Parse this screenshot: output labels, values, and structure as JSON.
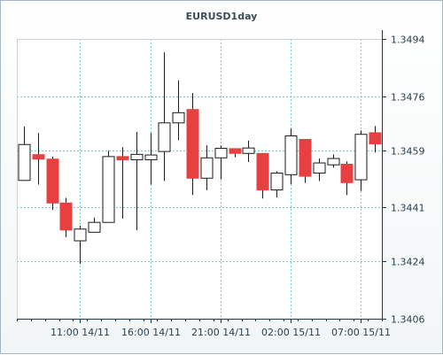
{
  "chart_data": {
    "type": "candlestick",
    "title": "EURUSD1day",
    "xlabel": "",
    "ylabel": "",
    "ylim": [
      1.3406,
      1.3494
    ],
    "y_ticks": [
      "1.3494",
      "1.3476",
      "1.3459",
      "1.3441",
      "1.3424",
      "1.3406"
    ],
    "x_ticks": [
      {
        "label": "11:00 14/11",
        "index": 4.5
      },
      {
        "label": "16:00 14/11",
        "index": 9.5
      },
      {
        "label": "21:00 14/11",
        "index": 14.5
      },
      {
        "label": "02:00 15/11",
        "index": 19.5
      },
      {
        "label": "07:00 15/11",
        "index": 24.5
      }
    ],
    "grid": true,
    "colors": {
      "bearish": "#e84040",
      "bullish": "#ffffff",
      "outline": "#1a1a1a",
      "grid": "#7ecbd3",
      "axis": "#1e3a4a"
    },
    "candles": [
      {
        "open": 1.34495,
        "high": 1.34665,
        "low": 1.34495,
        "close": 1.34608
      },
      {
        "open": 1.34576,
        "high": 1.34644,
        "low": 1.34482,
        "close": 1.34562
      },
      {
        "open": 1.34562,
        "high": 1.3457,
        "low": 1.34402,
        "close": 1.34424
      },
      {
        "open": 1.34424,
        "high": 1.3444,
        "low": 1.34317,
        "close": 1.34339
      },
      {
        "open": 1.34305,
        "high": 1.34352,
        "low": 1.34232,
        "close": 1.34342
      },
      {
        "open": 1.34332,
        "high": 1.34378,
        "low": 1.34332,
        "close": 1.34363
      },
      {
        "open": 1.34363,
        "high": 1.34588,
        "low": 1.34363,
        "close": 1.3457
      },
      {
        "open": 1.3457,
        "high": 1.346,
        "low": 1.34375,
        "close": 1.3456
      },
      {
        "open": 1.3456,
        "high": 1.34648,
        "low": 1.34339,
        "close": 1.34577
      },
      {
        "open": 1.3456,
        "high": 1.34644,
        "low": 1.34482,
        "close": 1.34575
      },
      {
        "open": 1.34586,
        "high": 1.34898,
        "low": 1.34493,
        "close": 1.34676
      },
      {
        "open": 1.34676,
        "high": 1.3481,
        "low": 1.34622,
        "close": 1.34708
      },
      {
        "open": 1.34718,
        "high": 1.3477,
        "low": 1.34449,
        "close": 1.34502
      },
      {
        "open": 1.34502,
        "high": 1.34605,
        "low": 1.34464,
        "close": 1.34566
      },
      {
        "open": 1.34566,
        "high": 1.34605,
        "low": 1.34498,
        "close": 1.34596
      },
      {
        "open": 1.34595,
        "high": 1.34595,
        "low": 1.34568,
        "close": 1.3458
      },
      {
        "open": 1.3458,
        "high": 1.3462,
        "low": 1.34553,
        "close": 1.34597
      },
      {
        "open": 1.3458,
        "high": 1.3458,
        "low": 1.34438,
        "close": 1.34465
      },
      {
        "open": 1.34465,
        "high": 1.34524,
        "low": 1.34441,
        "close": 1.34518
      },
      {
        "open": 1.34513,
        "high": 1.34658,
        "low": 1.34483,
        "close": 1.34635
      },
      {
        "open": 1.34624,
        "high": 1.34624,
        "low": 1.34487,
        "close": 1.34508
      },
      {
        "open": 1.34518,
        "high": 1.34564,
        "low": 1.34493,
        "close": 1.3455
      },
      {
        "open": 1.34544,
        "high": 1.34577,
        "low": 1.34535,
        "close": 1.34564
      },
      {
        "open": 1.34546,
        "high": 1.34555,
        "low": 1.34449,
        "close": 1.34488
      },
      {
        "open": 1.34497,
        "high": 1.34652,
        "low": 1.34462,
        "close": 1.3464
      },
      {
        "open": 1.34645,
        "high": 1.34666,
        "low": 1.34583,
        "close": 1.3461
      }
    ]
  }
}
